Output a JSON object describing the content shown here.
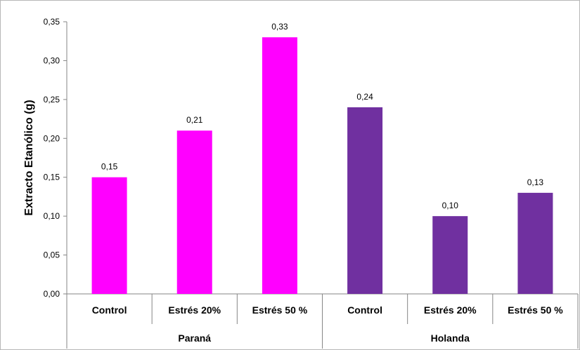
{
  "chart_data": {
    "type": "bar",
    "title": "",
    "xlabel": "",
    "ylabel": "Extracto Etanólico (g)",
    "ylim": [
      0,
      0.35
    ],
    "yticks": [
      "0,00",
      "0,05",
      "0,10",
      "0,15",
      "0,20",
      "0,25",
      "0,30",
      "0,35"
    ],
    "grid": false,
    "legend": "none",
    "groups": [
      {
        "name": "Paraná",
        "color": "#ff00ff",
        "categories": [
          "Control",
          "Estrés 20%",
          "Estrés 50 %"
        ],
        "values": [
          0.15,
          0.21,
          0.33
        ],
        "labels": [
          "0,15",
          "0,21",
          "0,33"
        ]
      },
      {
        "name": "Holanda",
        "color": "#7030a0",
        "categories": [
          "Control",
          "Estrés 20%",
          "Estrés 50 %"
        ],
        "values": [
          0.24,
          0.1,
          0.13
        ],
        "labels": [
          "0,24",
          "0,10",
          "0,13"
        ]
      }
    ]
  }
}
